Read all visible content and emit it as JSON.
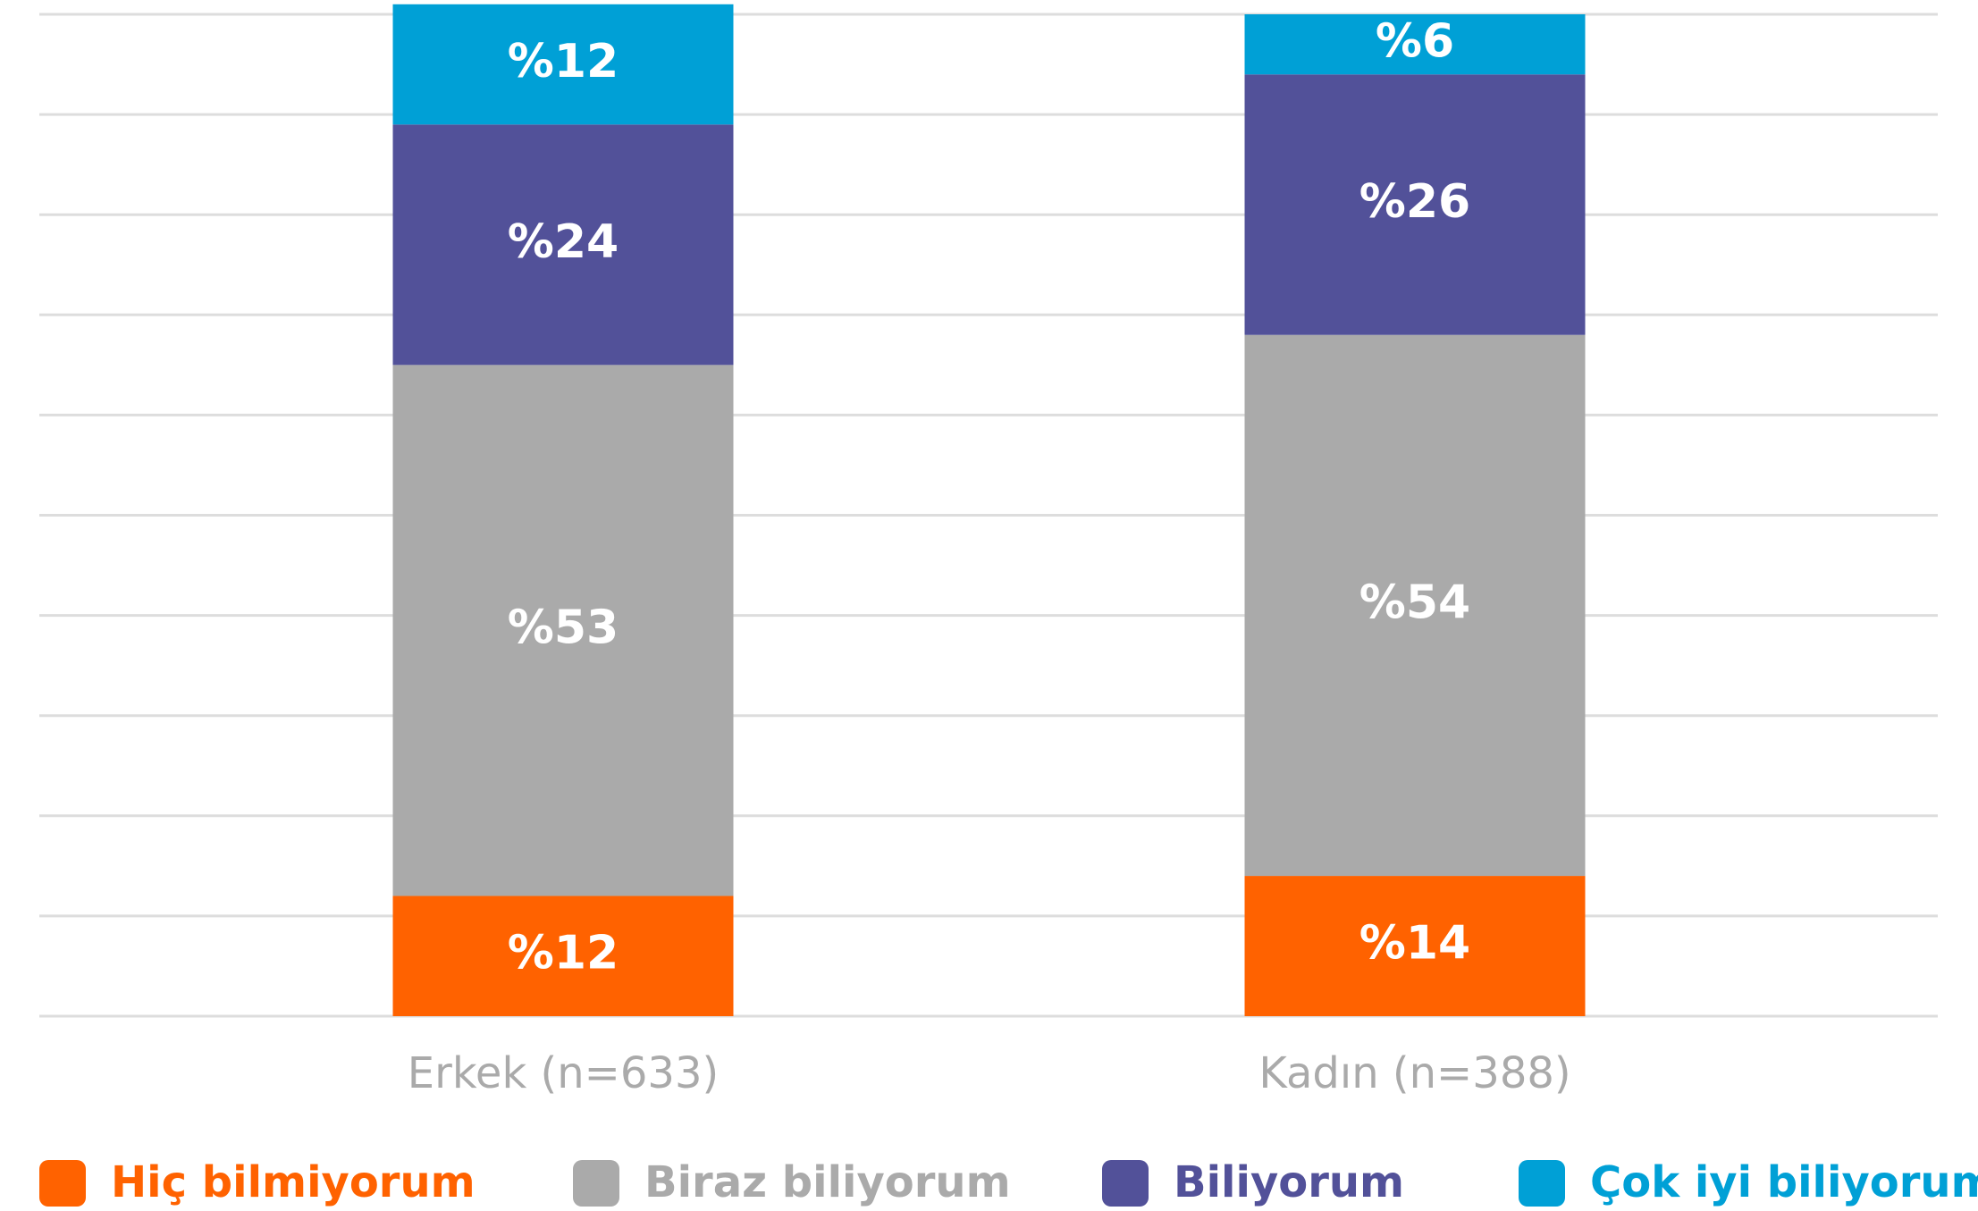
{
  "chart_data": {
    "type": "stacked_bar",
    "categories": [
      "Erkek (n=633)",
      "Kadın (n=388)"
    ],
    "series": [
      {
        "name": "Hiç bilmiyorum",
        "color": "#ff6200",
        "values": [
          12,
          14
        ],
        "value_labels": [
          "%12",
          "%14"
        ]
      },
      {
        "name": "Biraz biliyorum",
        "color": "#aaaaaa",
        "values": [
          53,
          54
        ],
        "value_labels": [
          "%53",
          "%54"
        ]
      },
      {
        "name": "Biliyorum",
        "color": "#525199",
        "values": [
          24,
          26
        ],
        "value_labels": [
          "%24",
          "%26"
        ]
      },
      {
        "name": "Çok iyi biliyorum",
        "color": "#00a0d6",
        "values": [
          12,
          6
        ],
        "value_labels": [
          "%12",
          "%6"
        ]
      }
    ],
    "ylim": [
      0,
      100
    ],
    "yticks": [
      0,
      10,
      20,
      30,
      40,
      50,
      60,
      70,
      80,
      90,
      100
    ],
    "grid": true,
    "legend": "bottom"
  }
}
